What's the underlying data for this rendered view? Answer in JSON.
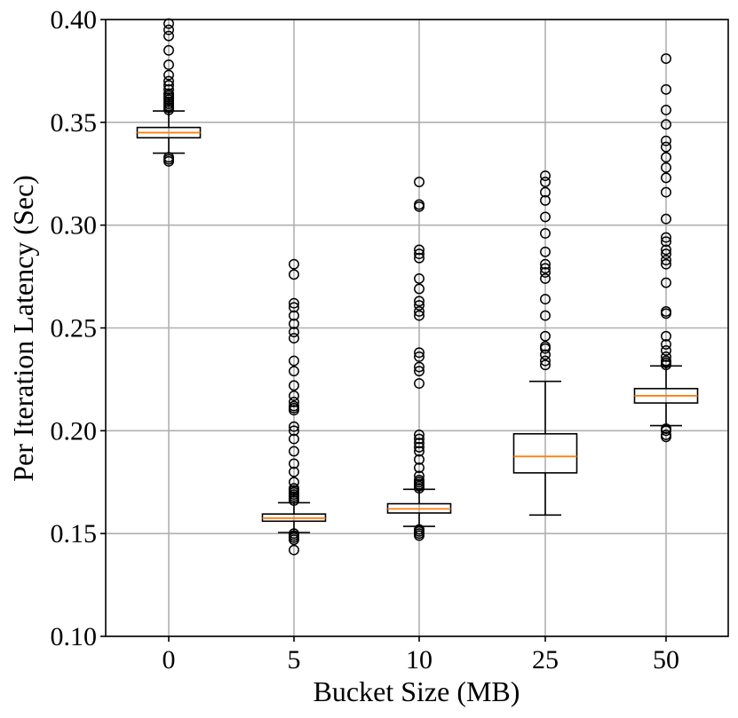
{
  "chart_data": {
    "type": "box",
    "xlabel": "Bucket Size (MB)",
    "ylabel": "Per Iteration Latency (Sec)",
    "ylim": [
      0.1,
      0.4
    ],
    "yticks": [
      "0.10",
      "0.15",
      "0.20",
      "0.25",
      "0.30",
      "0.35",
      "0.40"
    ],
    "grid": true,
    "median_color": "#ff7f0e",
    "categories": [
      "0",
      "5",
      "10",
      "25",
      "50"
    ],
    "boxes": [
      {
        "label": "0",
        "whisker_low": 0.335,
        "q1": 0.3425,
        "median": 0.345,
        "q3": 0.3475,
        "whisker_high": 0.3555,
        "outliers": [
          0.331,
          0.332,
          0.333,
          0.356,
          0.357,
          0.358,
          0.359,
          0.36,
          0.361,
          0.362,
          0.363,
          0.364,
          0.366,
          0.368,
          0.37,
          0.373,
          0.378,
          0.385,
          0.392,
          0.395,
          0.398
        ]
      },
      {
        "label": "5",
        "whisker_low": 0.1505,
        "q1": 0.156,
        "median": 0.1575,
        "q3": 0.1595,
        "whisker_high": 0.165,
        "outliers": [
          0.142,
          0.147,
          0.148,
          0.149,
          0.15,
          0.166,
          0.167,
          0.168,
          0.169,
          0.17,
          0.171,
          0.172,
          0.175,
          0.18,
          0.184,
          0.19,
          0.196,
          0.2,
          0.202,
          0.21,
          0.211,
          0.212,
          0.214,
          0.217,
          0.222,
          0.229,
          0.234,
          0.245,
          0.248,
          0.252,
          0.256,
          0.26,
          0.262,
          0.276,
          0.281
        ]
      },
      {
        "label": "10",
        "whisker_low": 0.1535,
        "q1": 0.16,
        "median": 0.162,
        "q3": 0.1645,
        "whisker_high": 0.1715,
        "outliers": [
          0.149,
          0.15,
          0.151,
          0.152,
          0.172,
          0.173,
          0.174,
          0.175,
          0.176,
          0.178,
          0.182,
          0.186,
          0.19,
          0.192,
          0.194,
          0.196,
          0.198,
          0.223,
          0.229,
          0.231,
          0.236,
          0.238,
          0.256,
          0.258,
          0.261,
          0.263,
          0.269,
          0.274,
          0.284,
          0.286,
          0.288,
          0.309,
          0.31,
          0.321
        ]
      },
      {
        "label": "25",
        "whisker_low": 0.159,
        "q1": 0.1795,
        "median": 0.1875,
        "q3": 0.1985,
        "whisker_high": 0.224,
        "outliers": [
          0.232,
          0.234,
          0.237,
          0.24,
          0.241,
          0.246,
          0.256,
          0.264,
          0.274,
          0.277,
          0.279,
          0.281,
          0.287,
          0.296,
          0.304,
          0.312,
          0.316,
          0.321,
          0.324
        ]
      },
      {
        "label": "50",
        "whisker_low": 0.2025,
        "q1": 0.2135,
        "median": 0.217,
        "q3": 0.2205,
        "whisker_high": 0.2315,
        "outliers": [
          0.197,
          0.198,
          0.2,
          0.201,
          0.232,
          0.233,
          0.234,
          0.236,
          0.239,
          0.242,
          0.246,
          0.257,
          0.258,
          0.272,
          0.281,
          0.283,
          0.286,
          0.288,
          0.292,
          0.294,
          0.303,
          0.316,
          0.323,
          0.328,
          0.333,
          0.338,
          0.341,
          0.349,
          0.356,
          0.366,
          0.381
        ]
      }
    ]
  }
}
